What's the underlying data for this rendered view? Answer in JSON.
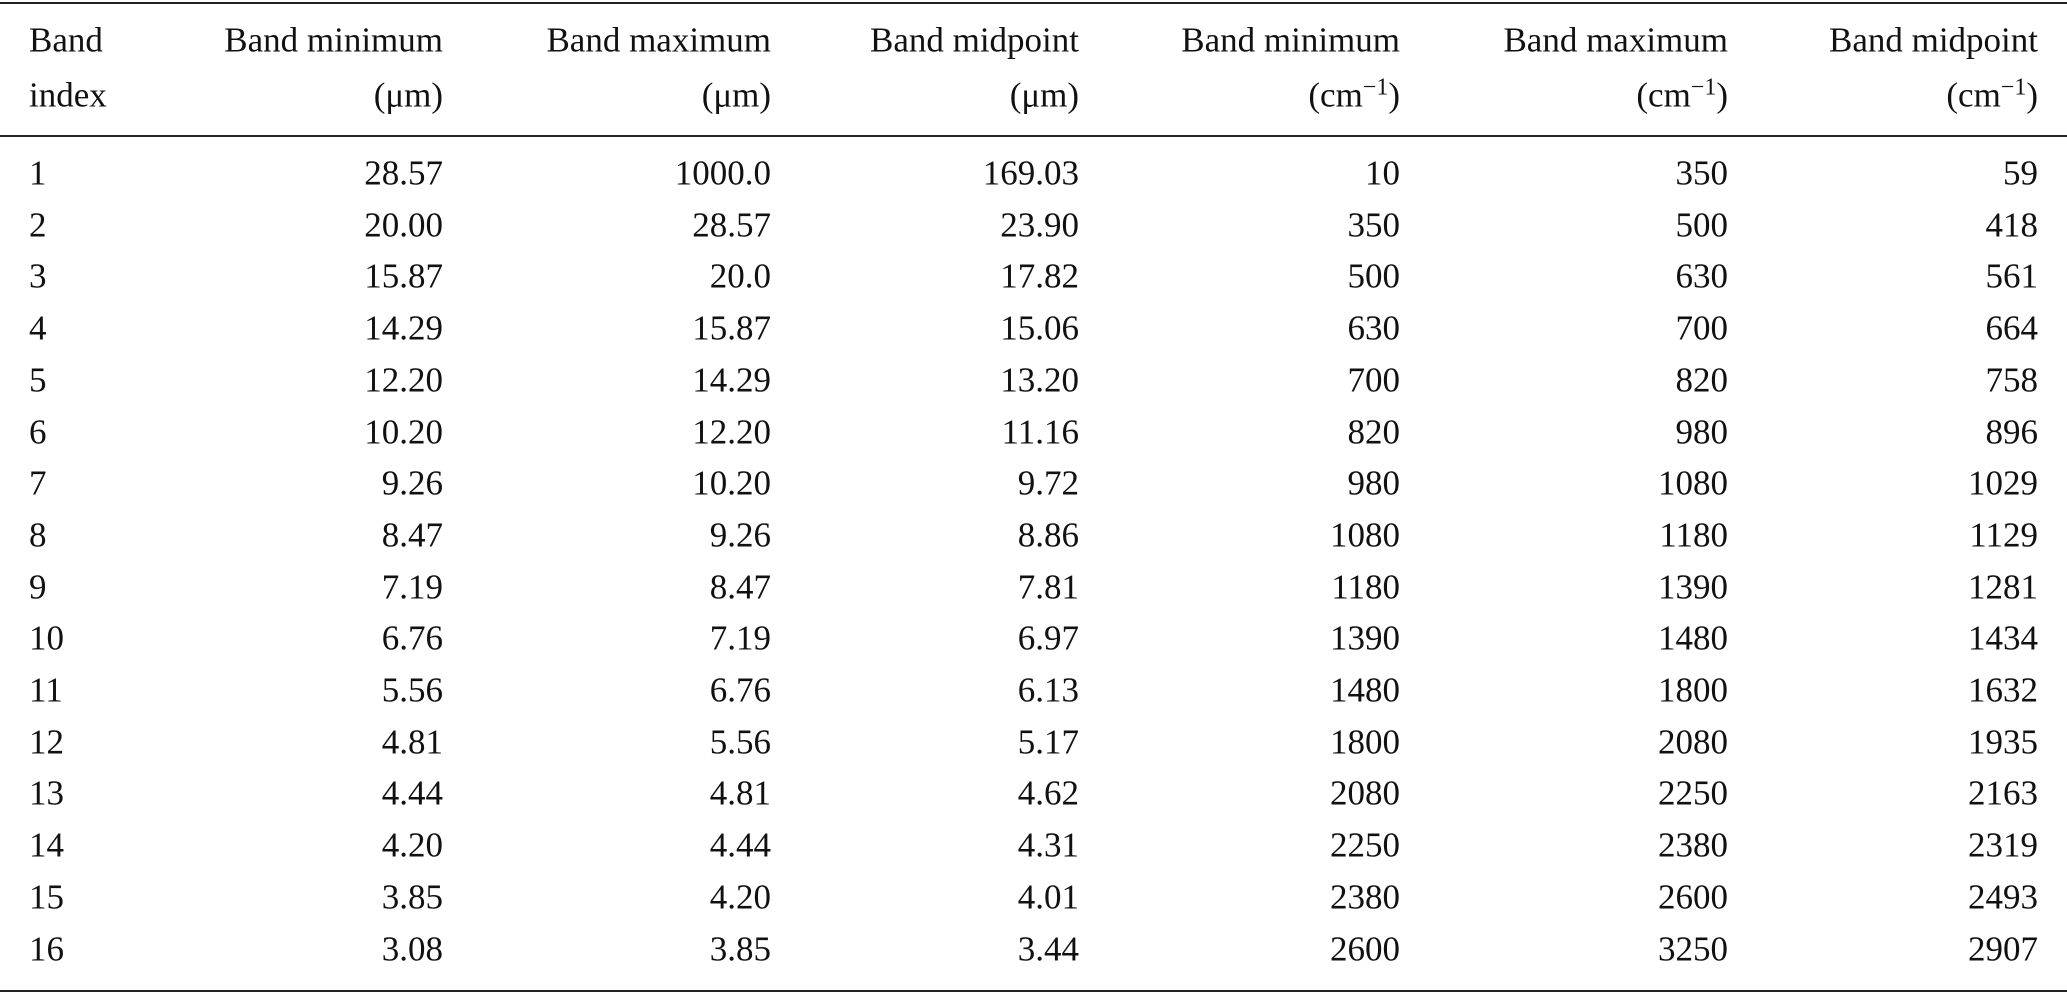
{
  "table": {
    "header": [
      {
        "line1": "Band",
        "line2": "index"
      },
      {
        "line1": "Band minimum",
        "line2": "(μm)"
      },
      {
        "line1": "Band maximum",
        "line2": "(μm)"
      },
      {
        "line1": "Band midpoint",
        "line2": "(μm)"
      },
      {
        "line1": "Band minimum",
        "line2": "(cm",
        "sup": "−1",
        "line2_end": ")"
      },
      {
        "line1": "Band maximum",
        "line2": "(cm",
        "sup": "−1",
        "line2_end": ")"
      },
      {
        "line1": "Band midpoint",
        "line2": "(cm",
        "sup": "−1",
        "line2_end": ")"
      }
    ],
    "rows": [
      [
        "1",
        "28.57",
        "1000.0",
        "169.03",
        "10",
        "350",
        "59"
      ],
      [
        "2",
        "20.00",
        "28.57",
        "23.90",
        "350",
        "500",
        "418"
      ],
      [
        "3",
        "15.87",
        "20.0",
        "17.82",
        "500",
        "630",
        "561"
      ],
      [
        "4",
        "14.29",
        "15.87",
        "15.06",
        "630",
        "700",
        "664"
      ],
      [
        "5",
        "12.20",
        "14.29",
        "13.20",
        "700",
        "820",
        "758"
      ],
      [
        "6",
        "10.20",
        "12.20",
        "11.16",
        "820",
        "980",
        "896"
      ],
      [
        "7",
        "9.26",
        "10.20",
        "9.72",
        "980",
        "1080",
        "1029"
      ],
      [
        "8",
        "8.47",
        "9.26",
        "8.86",
        "1080",
        "1180",
        "1129"
      ],
      [
        "9",
        "7.19",
        "8.47",
        "7.81",
        "1180",
        "1390",
        "1281"
      ],
      [
        "10",
        "6.76",
        "7.19",
        "6.97",
        "1390",
        "1480",
        "1434"
      ],
      [
        "11",
        "5.56",
        "6.76",
        "6.13",
        "1480",
        "1800",
        "1632"
      ],
      [
        "12",
        "4.81",
        "5.56",
        "5.17",
        "1800",
        "2080",
        "1935"
      ],
      [
        "13",
        "4.44",
        "4.81",
        "4.62",
        "2080",
        "2250",
        "2163"
      ],
      [
        "14",
        "4.20",
        "4.44",
        "4.31",
        "2250",
        "2380",
        "2319"
      ],
      [
        "15",
        "3.85",
        "4.20",
        "4.01",
        "2380",
        "2600",
        "2493"
      ],
      [
        "16",
        "3.08",
        "3.85",
        "3.44",
        "2600",
        "3250",
        "2907"
      ]
    ]
  }
}
